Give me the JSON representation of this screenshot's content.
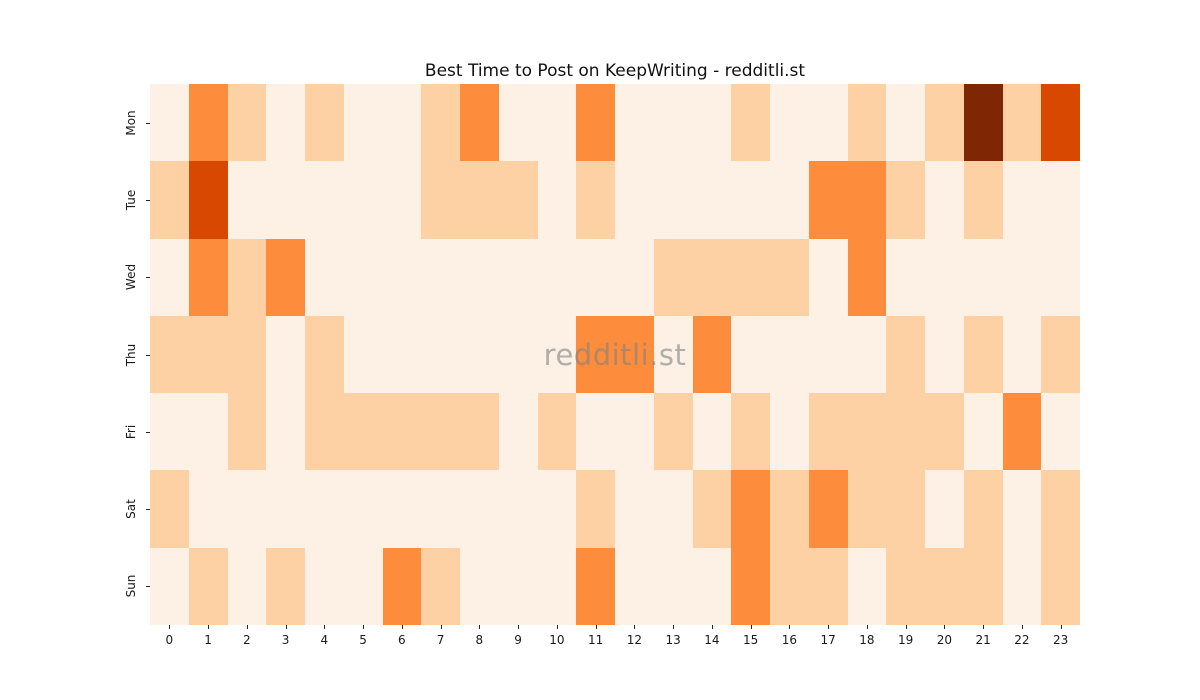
{
  "title": "Best Time to Post on KeepWriting - redditli.st",
  "watermark": "redditli.st",
  "colors": {
    "background": "#ffffff",
    "title_text": "#111111",
    "tick_text": "#1a1a1a",
    "watermark_text": "#828282"
  },
  "chart_data": {
    "type": "heatmap",
    "title": "Best Time to Post on KeepWriting - redditli.st",
    "xlabel": "",
    "ylabel": "",
    "colormap": "Oranges",
    "grid": false,
    "legend": "none",
    "columns": [
      "0",
      "1",
      "2",
      "3",
      "4",
      "5",
      "6",
      "7",
      "8",
      "9",
      "10",
      "11",
      "12",
      "13",
      "14",
      "15",
      "16",
      "17",
      "18",
      "19",
      "20",
      "21",
      "22",
      "23"
    ],
    "rows": [
      "Mon",
      "Tue",
      "Wed",
      "Thu",
      "Fri",
      "Sat",
      "Sun"
    ],
    "value_scale": {
      "description": "relative posting-activity intensity read from cell colors; 0 = lowest, 4 = highest",
      "levels": [
        0,
        1,
        2,
        3,
        4
      ],
      "colors": [
        "#fdf1e5",
        "#fdd1a3",
        "#fd8d3c",
        "#d94801",
        "#7f2704"
      ]
    },
    "values": [
      [
        0,
        2,
        1,
        0,
        1,
        0,
        0,
        1,
        2,
        0,
        0,
        2,
        0,
        0,
        0,
        1,
        0,
        0,
        1,
        0,
        1,
        4,
        1,
        3
      ],
      [
        1,
        3,
        0,
        0,
        0,
        0,
        0,
        1,
        1,
        1,
        0,
        1,
        0,
        0,
        0,
        0,
        0,
        2,
        2,
        1,
        0,
        1,
        0,
        0
      ],
      [
        0,
        2,
        1,
        2,
        0,
        0,
        0,
        0,
        0,
        0,
        0,
        0,
        0,
        1,
        1,
        1,
        1,
        0,
        2,
        0,
        0,
        0,
        0,
        0
      ],
      [
        1,
        1,
        1,
        0,
        1,
        0,
        0,
        0,
        0,
        0,
        0,
        2,
        2,
        0,
        2,
        0,
        0,
        0,
        0,
        1,
        0,
        1,
        0,
        1
      ],
      [
        0,
        0,
        1,
        0,
        1,
        1,
        1,
        1,
        1,
        0,
        1,
        0,
        0,
        1,
        0,
        1,
        0,
        1,
        1,
        1,
        1,
        0,
        2,
        0
      ],
      [
        1,
        0,
        0,
        0,
        0,
        0,
        0,
        0,
        0,
        0,
        0,
        1,
        0,
        0,
        1,
        2,
        1,
        2,
        1,
        1,
        0,
        1,
        0,
        1
      ],
      [
        0,
        1,
        0,
        1,
        0,
        0,
        2,
        1,
        0,
        0,
        0,
        2,
        0,
        0,
        0,
        2,
        1,
        1,
        0,
        1,
        1,
        1,
        0,
        1
      ]
    ]
  }
}
